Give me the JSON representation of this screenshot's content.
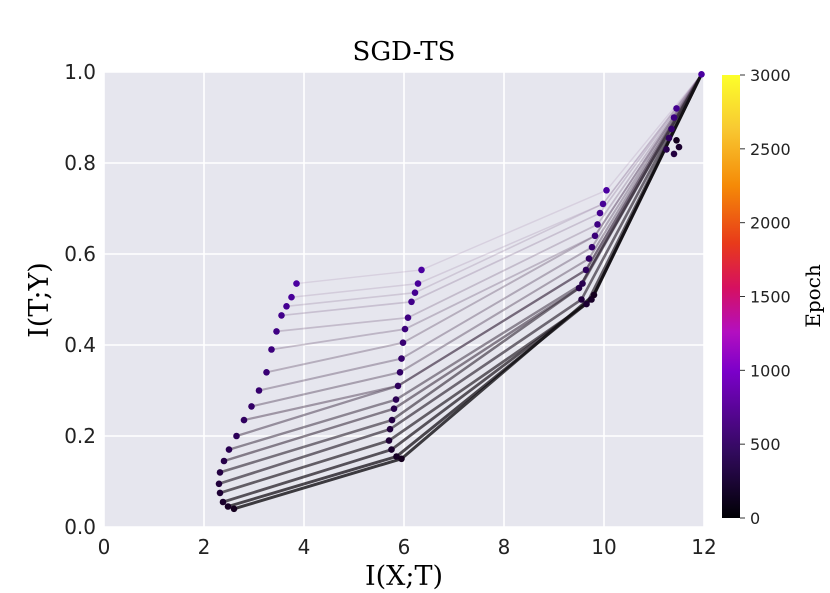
{
  "chart_data": {
    "type": "scatter",
    "title": "SGD-TS",
    "xlabel": "I(X;T)",
    "ylabel": "I(T;Y)",
    "xlim": [
      0,
      12
    ],
    "ylim": [
      0.0,
      1.0
    ],
    "xticks": [
      "0",
      "2",
      "4",
      "6",
      "8",
      "10",
      "12"
    ],
    "yticks": [
      "0.0",
      "0.2",
      "0.4",
      "0.6",
      "0.8",
      "1.0"
    ],
    "grid": true,
    "colorbar": {
      "label": "Epoch",
      "range": [
        0,
        3000
      ],
      "ticks": [
        "0",
        "500",
        "1000",
        "1500",
        "2000",
        "2500",
        "3000"
      ],
      "colormap": [
        "#000004",
        "#320a5e",
        "#7b00c9",
        "#b30fc0",
        "#d61060",
        "#e83a1a",
        "#f58a07",
        "#f8c932",
        "#fcff2a"
      ]
    },
    "series": [
      {
        "points": [
          [
            11.95,
            0.995
          ],
          [
            11.45,
            0.92
          ],
          [
            11.4,
            0.9
          ],
          [
            11.35,
            0.875
          ],
          [
            11.3,
            0.855
          ],
          [
            11.25,
            0.83
          ],
          [
            11.4,
            0.82
          ],
          [
            11.5,
            0.835
          ],
          [
            11.45,
            0.85
          ]
        ]
      },
      {
        "points": [
          [
            10.05,
            0.74
          ],
          [
            9.98,
            0.71
          ],
          [
            9.92,
            0.69
          ],
          [
            9.87,
            0.665
          ],
          [
            9.82,
            0.64
          ],
          [
            9.76,
            0.615
          ],
          [
            9.7,
            0.59
          ],
          [
            9.64,
            0.565
          ],
          [
            9.57,
            0.535
          ],
          [
            9.5,
            0.525
          ],
          [
            9.55,
            0.5
          ],
          [
            9.65,
            0.49
          ],
          [
            9.75,
            0.5
          ],
          [
            9.8,
            0.51
          ]
        ]
      },
      {
        "points": [
          [
            6.35,
            0.565
          ],
          [
            6.28,
            0.535
          ],
          [
            6.22,
            0.515
          ],
          [
            6.15,
            0.495
          ],
          [
            6.08,
            0.46
          ],
          [
            6.02,
            0.435
          ],
          [
            5.98,
            0.405
          ],
          [
            5.95,
            0.37
          ],
          [
            5.92,
            0.34
          ],
          [
            5.88,
            0.31
          ],
          [
            5.84,
            0.28
          ],
          [
            5.8,
            0.26
          ],
          [
            5.76,
            0.235
          ],
          [
            5.72,
            0.215
          ],
          [
            5.7,
            0.19
          ],
          [
            5.75,
            0.17
          ],
          [
            5.85,
            0.155
          ],
          [
            5.95,
            0.15
          ]
        ]
      },
      {
        "points": [
          [
            3.85,
            0.535
          ],
          [
            3.75,
            0.505
          ],
          [
            3.65,
            0.485
          ],
          [
            3.55,
            0.465
          ],
          [
            3.45,
            0.43
          ],
          [
            3.35,
            0.39
          ],
          [
            3.25,
            0.34
          ],
          [
            3.1,
            0.3
          ],
          [
            2.95,
            0.265
          ],
          [
            2.8,
            0.235
          ],
          [
            2.65,
            0.2
          ],
          [
            2.5,
            0.17
          ],
          [
            2.4,
            0.145
          ],
          [
            2.32,
            0.12
          ],
          [
            2.3,
            0.095
          ],
          [
            2.32,
            0.075
          ],
          [
            2.38,
            0.055
          ],
          [
            2.48,
            0.045
          ],
          [
            2.6,
            0.04
          ]
        ]
      }
    ]
  }
}
